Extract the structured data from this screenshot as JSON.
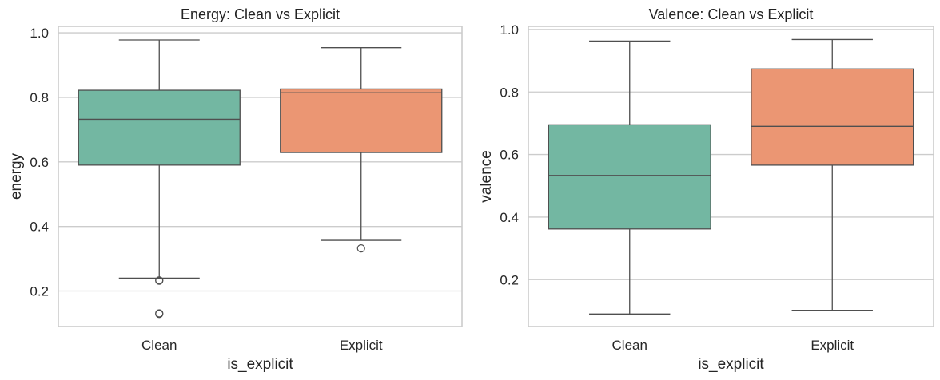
{
  "chart_data": [
    {
      "type": "box",
      "title": "Energy: Clean vs Explicit",
      "xlabel": "is_explicit",
      "ylabel": "energy",
      "ylim": [
        0.09,
        1.02
      ],
      "yticks": [
        0.2,
        0.4,
        0.6,
        0.8,
        1.0
      ],
      "ytick_labels": [
        "0.2",
        "0.4",
        "0.6",
        "0.8",
        "1.0"
      ],
      "grid": "horizontal",
      "categories": [
        "Clean",
        "Explicit"
      ],
      "colors": [
        "#73b7a2",
        "#eb9673"
      ],
      "boxes": [
        {
          "category": "Clean",
          "whislo": 0.24,
          "q1": 0.59,
          "med": 0.732,
          "q3": 0.822,
          "whishi": 0.978,
          "fliers": [
            0.233,
            0.232,
            0.131,
            0.129
          ]
        },
        {
          "category": "Explicit",
          "whislo": 0.357,
          "q1": 0.629,
          "med": 0.814,
          "q3": 0.826,
          "whishi": 0.954,
          "fliers": [
            0.332
          ]
        }
      ]
    },
    {
      "type": "box",
      "title": "Valence: Clean vs Explicit",
      "xlabel": "is_explicit",
      "ylabel": "valence",
      "ylim": [
        0.05,
        1.01
      ],
      "yticks": [
        0.2,
        0.4,
        0.6,
        0.8,
        1.0
      ],
      "ytick_labels": [
        "0.2",
        "0.4",
        "0.6",
        "0.8",
        "1.0"
      ],
      "grid": "horizontal",
      "categories": [
        "Clean",
        "Explicit"
      ],
      "colors": [
        "#73b7a2",
        "#eb9673"
      ],
      "boxes": [
        {
          "category": "Clean",
          "whislo": 0.09,
          "q1": 0.362,
          "med": 0.533,
          "q3": 0.695,
          "whishi": 0.963,
          "fliers": []
        },
        {
          "category": "Explicit",
          "whislo": 0.102,
          "q1": 0.566,
          "med": 0.69,
          "q3": 0.874,
          "whishi": 0.968,
          "fliers": []
        }
      ]
    }
  ]
}
